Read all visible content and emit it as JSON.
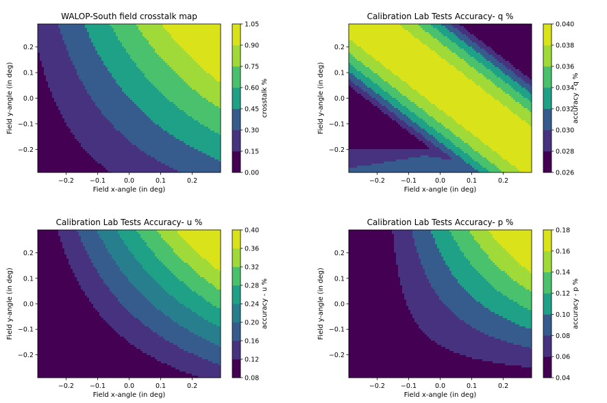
{
  "colors": [
    "#440154",
    "#46327e",
    "#365c8d",
    "#277f8e",
    "#1fa187",
    "#4ac16d",
    "#a0da39",
    "#dae319"
  ],
  "chart_data": [
    {
      "type": "contour",
      "title": "WALOP-South field crosstalk map",
      "xlabel": "Field x-angle (in deg)",
      "ylabel": "Field y-angle (in deg)",
      "cbar_label": "crosstalk %",
      "xlim": [
        -0.29,
        0.29
      ],
      "ylim": [
        -0.29,
        0.29
      ],
      "xticks": [
        "−0.2",
        "−0.1",
        "0.0",
        "0.1",
        "0.2"
      ],
      "yticks": [
        "−0.2",
        "−0.1",
        "0.0",
        "0.1",
        "0.2"
      ],
      "levels": [
        0.0,
        0.15,
        0.3,
        0.45,
        0.6,
        0.75,
        0.9,
        1.05
      ],
      "level_labels": [
        "0.00",
        "0.15",
        "0.30",
        "0.45",
        "0.60",
        "0.75",
        "0.90",
        "1.05"
      ]
    },
    {
      "type": "contour",
      "title": "Calibration Lab Tests Accuracy- q %",
      "xlabel": "Field x-angle (in deg)",
      "ylabel": "Field y-angle (in deg)",
      "cbar_label": "accuracy - q %",
      "xlim": [
        -0.29,
        0.29
      ],
      "ylim": [
        -0.29,
        0.29
      ],
      "xticks": [
        "−0.2",
        "−0.1",
        "0.0",
        "0.1",
        "0.2"
      ],
      "yticks": [
        "−0.2",
        "−0.1",
        "0.0",
        "0.1",
        "0.2"
      ],
      "levels": [
        0.026,
        0.028,
        0.03,
        0.032,
        0.034,
        0.036,
        0.038,
        0.04
      ],
      "level_labels": [
        "0.026",
        "0.028",
        "0.030",
        "0.032",
        "0.034",
        "0.036",
        "0.038",
        "0.040"
      ]
    },
    {
      "type": "contour",
      "title": "Calibration Lab Tests Accuracy- u %",
      "xlabel": "Field x-angle (in deg)",
      "ylabel": "Field y-angle (in deg)",
      "cbar_label": "accuracy - u %",
      "xlim": [
        -0.29,
        0.29
      ],
      "ylim": [
        -0.29,
        0.29
      ],
      "xticks": [
        "−0.2",
        "−0.1",
        "0.0",
        "0.1",
        "0.2"
      ],
      "yticks": [
        "−0.2",
        "−0.1",
        "0.0",
        "0.1",
        "0.2"
      ],
      "levels": [
        0.08,
        0.12,
        0.16,
        0.2,
        0.24,
        0.28,
        0.32,
        0.36,
        0.4
      ],
      "level_labels": [
        "0.08",
        "0.12",
        "0.16",
        "0.20",
        "0.24",
        "0.28",
        "0.32",
        "0.36",
        "0.40"
      ]
    },
    {
      "type": "contour",
      "title": "Calibration Lab Tests Accuracy- p %",
      "xlabel": "Field x-angle (in deg)",
      "ylabel": "Field y-angle (in deg)",
      "cbar_label": "accuracy - p %",
      "xlim": [
        -0.29,
        0.29
      ],
      "ylim": [
        -0.29,
        0.29
      ],
      "xticks": [
        "−0.2",
        "−0.1",
        "0.0",
        "0.1",
        "0.2"
      ],
      "yticks": [
        "−0.2",
        "−0.1",
        "0.0",
        "0.1",
        "0.2"
      ],
      "levels": [
        0.04,
        0.06,
        0.08,
        0.1,
        0.12,
        0.14,
        0.16,
        0.18
      ],
      "level_labels": [
        "0.04",
        "0.06",
        "0.08",
        "0.10",
        "0.12",
        "0.14",
        "0.16",
        "0.18"
      ]
    }
  ]
}
